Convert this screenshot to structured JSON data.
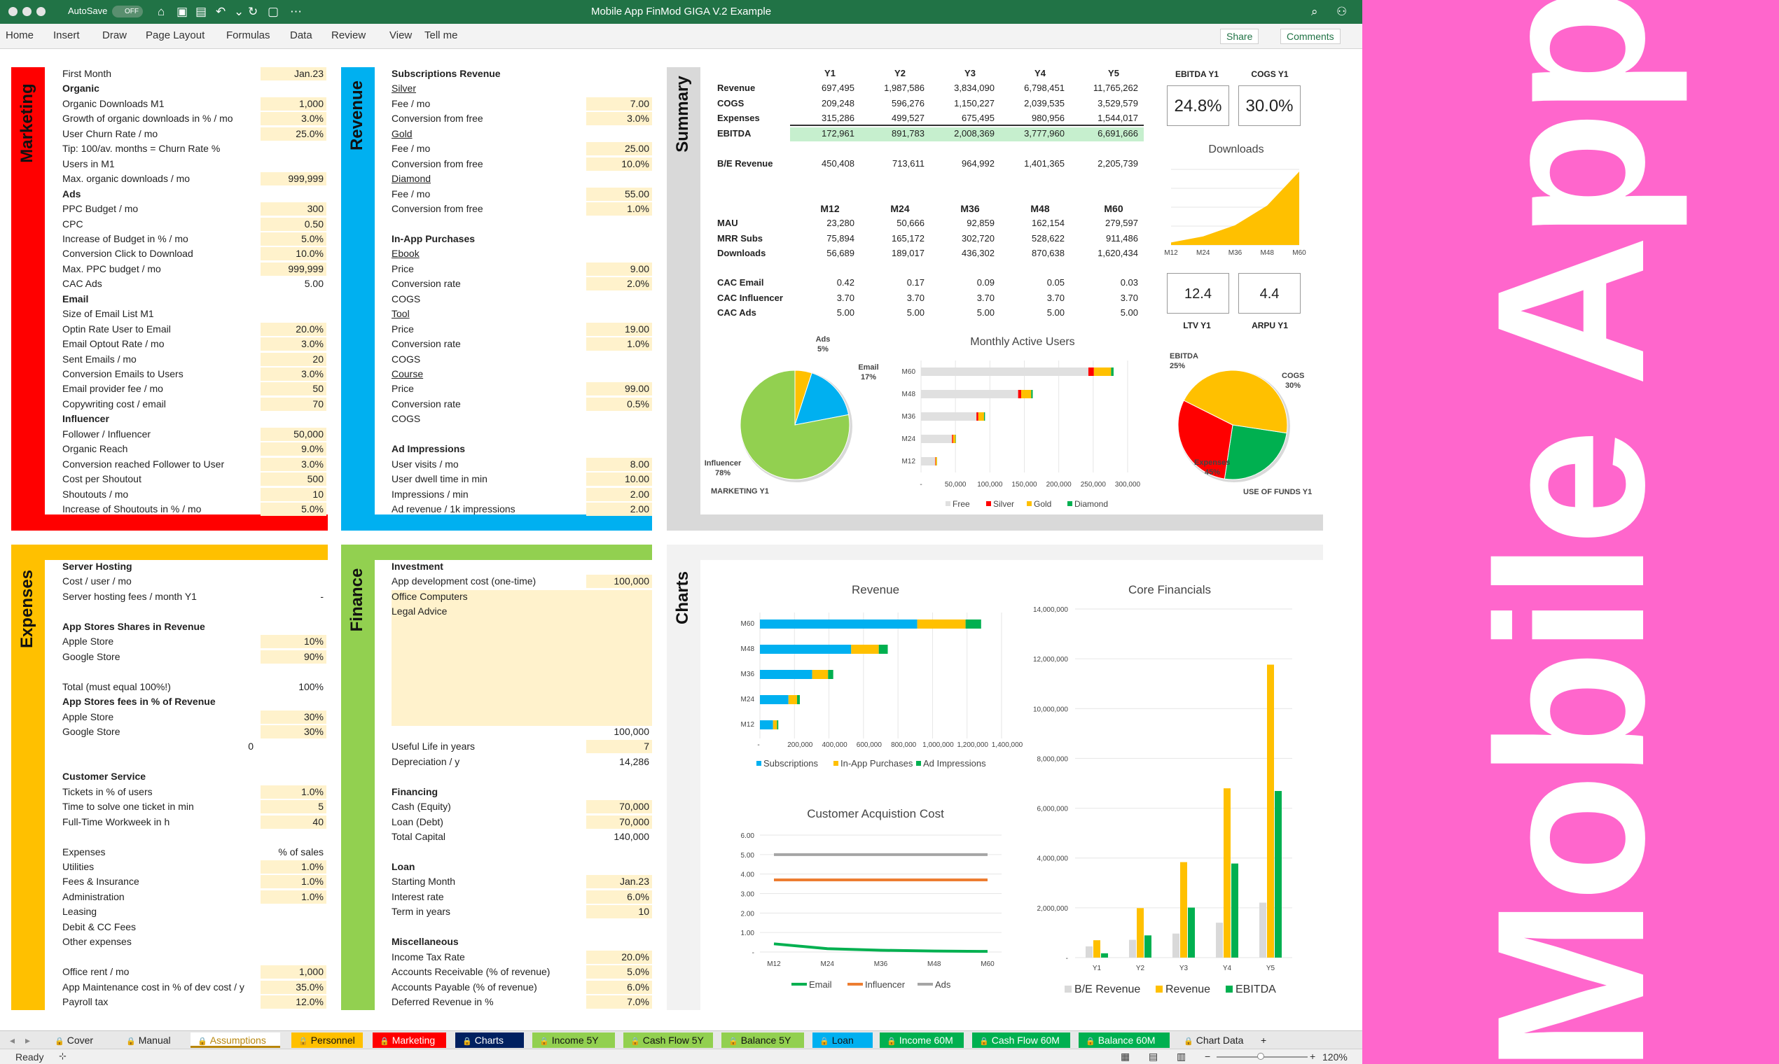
{
  "window": {
    "title": "Mobile App FinMod GIGA V.2 Example",
    "autosave": "AutoSave",
    "autosave_state": "OFF"
  },
  "ribbon": {
    "tabs": [
      "Home",
      "Insert",
      "Draw",
      "Page Layout",
      "Formulas",
      "Data",
      "Review",
      "View",
      "Tell me"
    ],
    "share": "Share",
    "comments": "Comments"
  },
  "sections": {
    "marketing": "Marketing",
    "revenue": "Revenue",
    "summary": "Summary",
    "expenses": "Expenses",
    "finance": "Finance",
    "charts": "Charts"
  },
  "colors": {
    "marketing": "#ff0000",
    "revenue": "#00b0f0",
    "summary": "#d9d9d9",
    "expenses": "#ffc000",
    "finance": "#92d050",
    "charts": "#f2f2f2",
    "cream": "#fff2cc",
    "excel_green": "#217346",
    "promo": "#ff66cc"
  },
  "marketing": [
    [
      "First Month",
      "Jan.23",
      ""
    ],
    [
      "Organic",
      "",
      "b"
    ],
    [
      "Organic Downloads M1",
      "1,000",
      ""
    ],
    [
      "Growth of organic downloads in % / mo",
      "3.0%",
      ""
    ],
    [
      "User Churn Rate / mo",
      "25.0%",
      ""
    ],
    [
      "Tip: 100/av. months = Churn Rate %",
      "",
      "n"
    ],
    [
      "Users in M1",
      "",
      ""
    ],
    [
      "Max. organic downloads / mo",
      "999,999",
      ""
    ],
    [
      "Ads",
      "",
      "b"
    ],
    [
      "PPC Budget / mo",
      "300",
      ""
    ],
    [
      "CPC",
      "0.50",
      ""
    ],
    [
      "Increase of Budget in % / mo",
      "5.0%",
      ""
    ],
    [
      "Conversion Click to Download",
      "10.0%",
      ""
    ],
    [
      "Max. PPC budget / mo",
      "999,999",
      ""
    ],
    [
      "CAC Ads",
      "5.00",
      "w"
    ],
    [
      "Email",
      "",
      "b"
    ],
    [
      "Size of Email List M1",
      "",
      ""
    ],
    [
      "Optin Rate User to Email",
      "20.0%",
      ""
    ],
    [
      "Email Optout Rate / mo",
      "3.0%",
      ""
    ],
    [
      "Sent Emails / mo",
      "20",
      ""
    ],
    [
      "Conversion Emails to Users",
      "3.0%",
      ""
    ],
    [
      "Email provider fee / mo",
      "50",
      ""
    ],
    [
      "Copywriting cost / email",
      "70",
      ""
    ],
    [
      "Influencer",
      "",
      "b"
    ],
    [
      "Follower / Influencer",
      "50,000",
      ""
    ],
    [
      "Organic Reach",
      "9.0%",
      ""
    ],
    [
      "Conversion reached Follower to User",
      "3.0%",
      ""
    ],
    [
      "Cost per Shoutout",
      "500",
      ""
    ],
    [
      "Shoutouts / mo",
      "10",
      ""
    ],
    [
      "Increase of Shoutouts in % / mo",
      "5.0%",
      ""
    ]
  ],
  "revenue": [
    [
      "Subscriptions Revenue",
      "",
      "b"
    ],
    [
      "Silver",
      "",
      "u"
    ],
    [
      "Fee / mo",
      "7.00",
      ""
    ],
    [
      "Conversion from free",
      "3.0%",
      ""
    ],
    [
      "Gold",
      "",
      "u"
    ],
    [
      "Fee / mo",
      "25.00",
      ""
    ],
    [
      "Conversion from free",
      "10.0%",
      ""
    ],
    [
      "Diamond",
      "",
      "u"
    ],
    [
      "Fee / mo",
      "55.00",
      ""
    ],
    [
      "Conversion from free",
      "1.0%",
      ""
    ],
    [
      "",
      "",
      "n"
    ],
    [
      "In-App Purchases",
      "",
      "b"
    ],
    [
      "Ebook",
      "",
      "u"
    ],
    [
      "Price",
      "9.00",
      ""
    ],
    [
      "Conversion rate",
      "2.0%",
      ""
    ],
    [
      "COGS",
      "",
      ""
    ],
    [
      "Tool",
      "",
      "u"
    ],
    [
      "Price",
      "19.00",
      ""
    ],
    [
      "Conversion rate",
      "1.0%",
      ""
    ],
    [
      "COGS",
      "",
      ""
    ],
    [
      "Course",
      "",
      "u"
    ],
    [
      "Price",
      "99.00",
      ""
    ],
    [
      "Conversion rate",
      "0.5%",
      ""
    ],
    [
      "COGS",
      "",
      ""
    ],
    [
      "",
      "",
      "n"
    ],
    [
      "Ad Impressions",
      "",
      "b"
    ],
    [
      "User visits / mo",
      "8.00",
      ""
    ],
    [
      "User dwell time in min",
      "10.00",
      ""
    ],
    [
      "Impressions / min",
      "2.00",
      ""
    ],
    [
      "Ad revenue / 1k impressions",
      "2.00",
      ""
    ]
  ],
  "expenses": [
    [
      "Server Hosting",
      "",
      "b"
    ],
    [
      "Cost / user / mo",
      "",
      ""
    ],
    [
      "Server hosting fees / month Y1",
      "-",
      "w"
    ],
    [
      "",
      "",
      "n"
    ],
    [
      "App Stores Shares in Revenue",
      "",
      "b"
    ],
    [
      "Apple Store",
      "10%",
      ""
    ],
    [
      "Google Store",
      "90%",
      ""
    ],
    [
      "",
      "",
      ""
    ],
    [
      "Total (must equal 100%!)",
      "100%",
      "w"
    ],
    [
      "App Stores fees in % of Revenue",
      "",
      "b"
    ],
    [
      "Apple Store",
      "30%",
      ""
    ],
    [
      "Google Store",
      "30%",
      ""
    ],
    [
      "",
      "0",
      "z"
    ],
    [
      "",
      "",
      "n"
    ],
    [
      "Customer Service",
      "",
      "b"
    ],
    [
      "Tickets in % of users",
      "1.0%",
      ""
    ],
    [
      "Time to solve one ticket in min",
      "5",
      ""
    ],
    [
      "Full-Time Workweek in h",
      "40",
      ""
    ],
    [
      "",
      "",
      "n"
    ],
    [
      "Expenses",
      "% of sales",
      "h"
    ],
    [
      "Utilities",
      "1.0%",
      ""
    ],
    [
      "Fees & Insurance",
      "1.0%",
      ""
    ],
    [
      "Administration",
      "1.0%",
      ""
    ],
    [
      "Leasing",
      "",
      ""
    ],
    [
      "Debit & CC Fees",
      "",
      ""
    ],
    [
      "Other expenses",
      "",
      ""
    ],
    [
      "",
      "",
      "n"
    ],
    [
      "Office rent / mo",
      "1,000",
      ""
    ],
    [
      "App Maintenance cost in % of dev cost / y",
      "35.0%",
      ""
    ],
    [
      "Payroll tax",
      "12.0%",
      ""
    ]
  ],
  "finance": [
    [
      "Investment",
      "",
      "b"
    ],
    [
      "App development cost (one-time)",
      "100,000",
      ""
    ],
    [
      "Office Computers",
      "",
      "c"
    ],
    [
      "Legal Advice",
      "",
      "c"
    ],
    [
      "",
      "",
      "c"
    ],
    [
      "",
      "",
      "c"
    ],
    [
      "",
      "",
      "c"
    ],
    [
      "",
      "",
      "c"
    ],
    [
      "",
      "",
      "c"
    ],
    [
      "",
      "",
      "c"
    ],
    [
      "",
      "",
      "c"
    ],
    [
      "",
      "100,000",
      "w"
    ],
    [
      "Useful Life in years",
      "7",
      ""
    ],
    [
      "Depreciation / y",
      "14,286",
      "w"
    ],
    [
      "",
      "",
      "n"
    ],
    [
      "Financing",
      "",
      "b"
    ],
    [
      "Cash (Equity)",
      "70,000",
      ""
    ],
    [
      "Loan (Debt)",
      "70,000",
      ""
    ],
    [
      "Total Capital",
      "140,000",
      "w"
    ],
    [
      "",
      "",
      "n"
    ],
    [
      "Loan",
      "",
      "b"
    ],
    [
      "Starting Month",
      "Jan.23",
      ""
    ],
    [
      "Interest rate",
      "6.0%",
      ""
    ],
    [
      "Term in years",
      "10",
      ""
    ],
    [
      "",
      "",
      "n"
    ],
    [
      "Miscellaneous",
      "",
      "b"
    ],
    [
      "Income Tax Rate",
      "20.0%",
      ""
    ],
    [
      "Accounts Receivable (% of revenue)",
      "5.0%",
      ""
    ],
    [
      "Accounts Payable (% of revenue)",
      "6.0%",
      ""
    ],
    [
      "Deferred Revenue in %",
      "7.0%",
      ""
    ]
  ],
  "summary": {
    "years": [
      "Y1",
      "Y2",
      "Y3",
      "Y4",
      "Y5"
    ],
    "rows": [
      [
        "Revenue",
        "697,495",
        "1,987,586",
        "3,834,090",
        "6,798,451",
        "11,765,262"
      ],
      [
        "COGS",
        "209,248",
        "596,276",
        "1,150,227",
        "2,039,535",
        "3,529,579"
      ],
      [
        "Expenses",
        "315,286",
        "499,527",
        "675,495",
        "980,956",
        "1,544,017"
      ],
      [
        "EBITDA",
        "172,961",
        "891,783",
        "2,008,369",
        "3,777,960",
        "6,691,666"
      ]
    ],
    "be": [
      "B/E Revenue",
      "450,408",
      "713,611",
      "964,992",
      "1,401,365",
      "2,205,739"
    ],
    "months": [
      "M12",
      "M24",
      "M36",
      "M48",
      "M60"
    ],
    "mrows": [
      [
        "MAU",
        "23,280",
        "50,666",
        "92,859",
        "162,154",
        "279,597"
      ],
      [
        "MRR Subs",
        "75,894",
        "165,172",
        "302,720",
        "528,622",
        "911,486"
      ],
      [
        "Downloads",
        "56,689",
        "189,017",
        "436,302",
        "870,638",
        "1,620,434"
      ]
    ],
    "cac": [
      [
        "CAC Email",
        "0.42",
        "0.17",
        "0.09",
        "0.05",
        "0.03"
      ],
      [
        "CAC Influencer",
        "3.70",
        "3.70",
        "3.70",
        "3.70",
        "3.70"
      ],
      [
        "CAC Ads",
        "5.00",
        "5.00",
        "5.00",
        "5.00",
        "5.00"
      ]
    ],
    "kpi": {
      "ebitda_label": "EBITDA Y1",
      "ebitda": "24.8%",
      "cogs_label": "COGS Y1",
      "cogs": "30.0%",
      "ltv_label": "LTV Y1",
      "ltv": "12.4",
      "arpu_label": "ARPU Y1",
      "arpu": "4.4"
    }
  },
  "chart_data": [
    {
      "type": "area",
      "title": "Downloads",
      "categories": [
        "M12",
        "M24",
        "M36",
        "M48",
        "M60"
      ],
      "values": [
        56689,
        189017,
        436302,
        870638,
        1620434
      ]
    },
    {
      "type": "pie",
      "title": "MARKETING Y1",
      "labels": [
        "Ads",
        "Email",
        "Influencer"
      ],
      "values": [
        5,
        17,
        78
      ],
      "display": [
        "5%",
        "17%",
        "78%"
      ],
      "colors": [
        "#ffc000",
        "#00b0f0",
        "#92d050"
      ]
    },
    {
      "type": "bar",
      "title": "Monthly Active Users",
      "categories": [
        "M60",
        "M48",
        "M36",
        "M24",
        "M12"
      ],
      "series": [
        {
          "name": "Free",
          "color": "#e0e0e0",
          "values": [
            243000,
            141000,
            80500,
            45000,
            20500
          ]
        },
        {
          "name": "Silver",
          "color": "#ff0000",
          "values": [
            8000,
            4500,
            2700,
            1500,
            700
          ]
        },
        {
          "name": "Gold",
          "color": "#ffc000",
          "values": [
            25000,
            14500,
            8300,
            3700,
            1900
          ]
        },
        {
          "name": "Diamond",
          "color": "#00b050",
          "values": [
            3600,
            2200,
            1400,
            500,
            180
          ]
        }
      ],
      "ticks": [
        "-",
        "50,000",
        "100,000",
        "150,000",
        "200,000",
        "250,000",
        "300,000"
      ],
      "xmax": 300000
    },
    {
      "type": "pie",
      "title": "USE OF FUNDS Y1",
      "labels": [
        "EBITDA",
        "COGS",
        "Expenses"
      ],
      "values": [
        25,
        30,
        45
      ],
      "display": [
        "25%",
        "30%",
        "45%"
      ],
      "colors": [
        "#00b050",
        "#ff0000",
        "#ffc000"
      ]
    },
    {
      "type": "bar",
      "title": "Revenue",
      "categories": [
        "M60",
        "M48",
        "M36",
        "M24",
        "M12"
      ],
      "series": [
        {
          "name": "Subscriptions",
          "color": "#00b0f0",
          "values": [
            911486,
            528622,
            302720,
            165172,
            75894
          ]
        },
        {
          "name": "In-App Purchases",
          "color": "#ffc000",
          "values": [
            280000,
            160000,
            92000,
            50000,
            23000
          ]
        },
        {
          "name": "Ad Impressions",
          "color": "#00b050",
          "values": [
            90000,
            52000,
            30000,
            16000,
            7500
          ]
        }
      ],
      "ticks": [
        "-",
        "200,000",
        "400,000",
        "600,000",
        "800,000",
        "1,000,000",
        "1,200,000",
        "1,400,000"
      ],
      "xmax": 1400000
    },
    {
      "type": "line",
      "title": "Customer Acquistion Cost",
      "categories": [
        "M12",
        "M24",
        "M36",
        "M48",
        "M60"
      ],
      "series": [
        {
          "name": "Email",
          "color": "#00b050",
          "values": [
            0.42,
            0.17,
            0.09,
            0.05,
            0.03
          ]
        },
        {
          "name": "Influencer",
          "color": "#ed7d31",
          "values": [
            3.7,
            3.7,
            3.7,
            3.7,
            3.7
          ]
        },
        {
          "name": "Ads",
          "color": "#a5a5a5",
          "values": [
            5,
            5,
            5,
            5,
            5
          ]
        }
      ],
      "yticks": [
        "6.00",
        "5.00",
        "4.00",
        "3.00",
        "2.00",
        "1.00",
        "-"
      ],
      "ylim": [
        0,
        6
      ]
    },
    {
      "type": "bar",
      "title": "Core Financials",
      "categories": [
        "Y1",
        "Y2",
        "Y3",
        "Y4",
        "Y5"
      ],
      "series": [
        {
          "name": "B/E Revenue",
          "color": "#d9d9d9",
          "values": [
            450408,
            713611,
            964992,
            1401365,
            2205739
          ]
        },
        {
          "name": "Revenue",
          "color": "#ffc000",
          "values": [
            697495,
            1987586,
            3834090,
            6798451,
            11765262
          ]
        },
        {
          "name": "EBITDA",
          "color": "#00b050",
          "values": [
            172961,
            891783,
            2008369,
            3777960,
            6691666
          ]
        }
      ],
      "yticks": [
        "14,000,000",
        "12,000,000",
        "10,000,000",
        "8,000,000",
        "6,000,000",
        "4,000,000",
        "2,000,000",
        "-"
      ],
      "ylim": [
        0,
        14000000
      ]
    }
  ],
  "sheet_tabs": [
    {
      "label": "Cover",
      "bg": "#e8e8e8",
      "fg": "#222"
    },
    {
      "label": "Manual",
      "bg": "#e8e8e8",
      "fg": "#222"
    },
    {
      "label": "Assumptions",
      "bg": "#ffffff",
      "fg": "#b8860b"
    },
    {
      "label": "Personnel",
      "bg": "#ffc000",
      "fg": "#111"
    },
    {
      "label": "Marketing",
      "bg": "#ff0000",
      "fg": "#fff"
    },
    {
      "label": "Charts",
      "bg": "#002060",
      "fg": "#fff"
    },
    {
      "label": "Income 5Y",
      "bg": "#92d050",
      "fg": "#111"
    },
    {
      "label": "Cash Flow 5Y",
      "bg": "#92d050",
      "fg": "#111"
    },
    {
      "label": "Balance 5Y",
      "bg": "#92d050",
      "fg": "#111"
    },
    {
      "label": "Loan",
      "bg": "#00b0f0",
      "fg": "#111"
    },
    {
      "label": "Income 60M",
      "bg": "#00b050",
      "fg": "#fff"
    },
    {
      "label": "Cash Flow 60M",
      "bg": "#00b050",
      "fg": "#fff"
    },
    {
      "label": "Balance 60M",
      "bg": "#00b050",
      "fg": "#fff"
    },
    {
      "label": "Chart Data",
      "bg": "#e8e8e8",
      "fg": "#222"
    },
    {
      "label": "+",
      "bg": "#e8e8e8",
      "fg": "#222"
    }
  ],
  "status": {
    "ready": "Ready",
    "zoom": "120%"
  },
  "promo": {
    "text": "Mobile App"
  }
}
